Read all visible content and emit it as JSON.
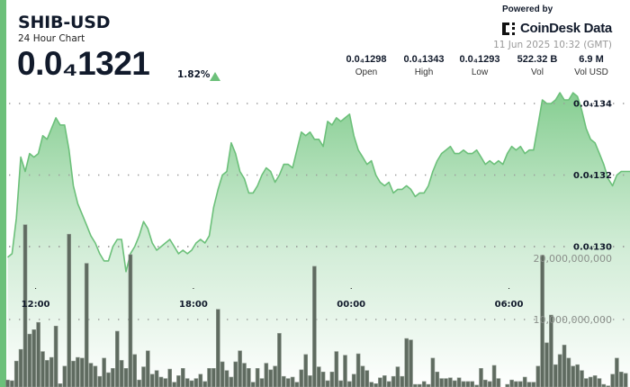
{
  "header": {
    "title": "SHIB-USD",
    "subtitle": "24 Hour Chart",
    "price": "0.0₄1321",
    "change": "1.82%",
    "change_direction": "up",
    "powered_by": "Powered by",
    "brand": "CoinDesk Data",
    "timestamp": "11 Jun 2025 10:32 (GMT)"
  },
  "stats": [
    {
      "value": "0.0₄1298",
      "label": "Open"
    },
    {
      "value": "0.0₄1343",
      "label": "High"
    },
    {
      "value": "0.0₄1293",
      "label": "Low"
    },
    {
      "value": "522.32 B",
      "label": "Vol"
    },
    {
      "value": "6.9 M",
      "label": "Vol USD"
    }
  ],
  "colors": {
    "accent": "#6cc07a",
    "line": "#6cc07a",
    "bars": "#5f6b60",
    "text": "#111a2b"
  },
  "chart_data": {
    "type": "line+bar",
    "grid": true,
    "price_axis": {
      "ticks": [
        1.3e-05,
        1.32e-05,
        1.34e-05
      ],
      "tick_labels": [
        "0.0₄130",
        "0.0₄132",
        "0.0₄134"
      ],
      "range": [
        1.3e-05,
        1.34e-05
      ]
    },
    "volume_axis": {
      "ticks": [
        10000000000,
        20000000000
      ],
      "tick_labels": [
        "10,000,000,000",
        "20,000,000,000"
      ]
    },
    "x_tick_labels": [
      "12:00",
      "18:00",
      "00:00",
      "06:00"
    ],
    "times": [
      "10:50",
      "11:00",
      "11:10",
      "11:20",
      "11:30",
      "11:40",
      "11:50",
      "12:00",
      "12:10",
      "12:20",
      "12:30",
      "12:40",
      "12:50",
      "13:00",
      "13:10",
      "13:20",
      "13:30",
      "13:40",
      "13:50",
      "14:00",
      "14:10",
      "14:20",
      "14:30",
      "14:40",
      "14:50",
      "15:00",
      "15:10",
      "15:20",
      "15:30",
      "15:40",
      "15:50",
      "16:00",
      "16:10",
      "16:20",
      "16:30",
      "16:40",
      "16:50",
      "17:00",
      "17:10",
      "17:20",
      "17:30",
      "17:40",
      "17:50",
      "18:00",
      "18:10",
      "18:20",
      "18:30",
      "18:40",
      "18:50",
      "19:00",
      "19:10",
      "19:20",
      "19:30",
      "19:40",
      "19:50",
      "20:00",
      "20:10",
      "20:20",
      "20:30",
      "20:40",
      "20:50",
      "21:00",
      "21:10",
      "21:20",
      "21:30",
      "21:40",
      "21:50",
      "22:00",
      "22:10",
      "22:20",
      "22:30",
      "22:40",
      "22:50",
      "23:00",
      "23:10",
      "23:20",
      "23:30",
      "23:40",
      "23:50",
      "00:00",
      "00:10",
      "00:20",
      "00:30",
      "00:40",
      "00:50",
      "01:00",
      "01:10",
      "01:20",
      "01:30",
      "01:40",
      "01:50",
      "02:00",
      "02:10",
      "02:20",
      "02:30",
      "02:40",
      "02:50",
      "03:00",
      "03:10",
      "03:20",
      "03:30",
      "03:40",
      "03:50",
      "04:00",
      "04:10",
      "04:20",
      "04:30",
      "04:40",
      "04:50",
      "05:00",
      "05:10",
      "05:20",
      "05:30",
      "05:40",
      "05:50",
      "06:00",
      "06:10",
      "06:20",
      "06:30",
      "06:40",
      "06:50",
      "07:00",
      "07:10",
      "07:20",
      "07:30",
      "07:40",
      "07:50",
      "08:00",
      "08:10",
      "08:20",
      "08:30",
      "08:40",
      "08:50",
      "09:00",
      "09:10",
      "09:20",
      "09:30",
      "09:40",
      "09:50",
      "10:00",
      "10:10",
      "10:20"
    ],
    "price": [
      1.297e-05,
      1.298e-05,
      1.308e-05,
      1.325e-05,
      1.321e-05,
      1.326e-05,
      1.325e-05,
      1.326e-05,
      1.331e-05,
      1.33e-05,
      1.333e-05,
      1.336e-05,
      1.334e-05,
      1.334e-05,
      1.327e-05,
      1.317e-05,
      1.312e-05,
      1.309e-05,
      1.306e-05,
      1.303e-05,
      1.301e-05,
      1.298e-05,
      1.296e-05,
      1.296e-05,
      1.3e-05,
      1.302e-05,
      1.302e-05,
      1.293e-05,
      1.298e-05,
      1.3e-05,
      1.303e-05,
      1.307e-05,
      1.305e-05,
      1.301e-05,
      1.299e-05,
      1.3e-05,
      1.301e-05,
      1.302e-05,
      1.3e-05,
      1.298e-05,
      1.299e-05,
      1.298e-05,
      1.299e-05,
      1.301e-05,
      1.302e-05,
      1.301e-05,
      1.303e-05,
      1.311e-05,
      1.316e-05,
      1.32e-05,
      1.321e-05,
      1.329e-05,
      1.326e-05,
      1.321e-05,
      1.319e-05,
      1.315e-05,
      1.315e-05,
      1.317e-05,
      1.32e-05,
      1.322e-05,
      1.321e-05,
      1.318e-05,
      1.32e-05,
      1.323e-05,
      1.323e-05,
      1.322e-05,
      1.327e-05,
      1.332e-05,
      1.331e-05,
      1.332e-05,
      1.33e-05,
      1.33e-05,
      1.328e-05,
      1.335e-05,
      1.334e-05,
      1.336e-05,
      1.335e-05,
      1.336e-05,
      1.337e-05,
      1.331e-05,
      1.327e-05,
      1.325e-05,
      1.323e-05,
      1.324e-05,
      1.32e-05,
      1.318e-05,
      1.317e-05,
      1.318e-05,
      1.315e-05,
      1.316e-05,
      1.316e-05,
      1.317e-05,
      1.316e-05,
      1.314e-05,
      1.315e-05,
      1.315e-05,
      1.317e-05,
      1.321e-05,
      1.324e-05,
      1.326e-05,
      1.327e-05,
      1.328e-05,
      1.326e-05,
      1.326e-05,
      1.327e-05,
      1.326e-05,
      1.326e-05,
      1.327e-05,
      1.325e-05,
      1.323e-05,
      1.324e-05,
      1.323e-05,
      1.324e-05,
      1.323e-05,
      1.326e-05,
      1.328e-05,
      1.327e-05,
      1.328e-05,
      1.326e-05,
      1.327e-05,
      1.327e-05,
      1.334e-05,
      1.341e-05,
      1.34e-05,
      1.34e-05,
      1.341e-05,
      1.343e-05,
      1.341e-05,
      1.341e-05,
      1.343e-05,
      1.342e-05,
      1.338e-05,
      1.333e-05,
      1.33e-05,
      1.329e-05,
      1.326e-05,
      1.323e-05,
      1.319e-05,
      1.317e-05,
      1.32e-05,
      1.321e-05,
      1.321e-05
    ],
    "volume": [
      1700000000.0,
      1600000000.0,
      4300000000.0,
      5900000000.0,
      23000000000.0,
      8000000000.0,
      8600000000.0,
      9600000000.0,
      5600000000.0,
      4400000000.0,
      4800000000.0,
      9100000000.0,
      1200000000.0,
      3600000000.0,
      21700000000.0,
      4300000000.0,
      4800000000.0,
      4700000000.0,
      17700000000.0,
      4000000000.0,
      3600000000.0,
      2200000000.0,
      4700000000.0,
      2700000000.0,
      3300000000.0,
      8400000000.0,
      4400000000.0,
      3300000000.0,
      18900000000.0,
      5200000000.0,
      1700000000.0,
      3500000000.0,
      5700000000.0,
      2500000000.0,
      3000000000.0,
      2100000000.0,
      1900000000.0,
      3200000000.0,
      1400000000.0,
      2300000000.0,
      3300000000.0,
      1900000000.0,
      1600000000.0,
      1900000000.0,
      2500000000.0,
      1500000000.0,
      3300000000.0,
      3300000000.0,
      11400000000.0,
      4200000000.0,
      3000000000.0,
      2100000000.0,
      4200000000.0,
      5700000000.0,
      4000000000.0,
      3300000000.0,
      1400000000.0,
      3300000000.0,
      1900000000.0,
      4000000000.0,
      3100000000.0,
      3600000000.0,
      8100000000.0,
      2200000000.0,
      1900000000.0,
      2100000000.0,
      1400000000.0,
      3100000000.0,
      5200000000.0,
      2300000000.0,
      17300000000.0,
      3500000000.0,
      2800000000.0,
      1600000000.0,
      2800000000.0,
      5600000000.0,
      1600000000.0,
      5100000000.0,
      1500000000.0,
      2500000000.0,
      5300000000.0,
      3600000000.0,
      3000000000.0,
      1400000000.0,
      1200000000.0,
      2000000000.0,
      2300000000.0,
      1500000000.0,
      2200000000.0,
      3500000000.0,
      2200000000.0,
      7400000000.0,
      7200000000.0,
      1100000000.0,
      1100000000.0,
      1500000000.0,
      1100000000.0,
      4700000000.0,
      2800000000.0,
      1900000000.0,
      1900000000.0,
      2000000000.0,
      1600000000.0,
      2000000000.0,
      1500000000.0,
      1500000000.0,
      1500000000.0,
      1000000000.0,
      3300000000.0,
      1700000000.0,
      1500000000.0,
      3700000000.0,
      1900000000.0,
      700000000.0,
      1100000000.0,
      1700000000.0,
      1500000000.0,
      1500000000.0,
      2100000000.0,
      1400000000.0,
      1400000000.0,
      3600000000.0,
      18800000000.0,
      6800000000.0,
      10600000000.0,
      3800000000.0,
      5200000000.0,
      6500000000.0,
      4700000000.0,
      3600000000.0,
      3800000000.0,
      3000000000.0,
      1900000000.0,
      2100000000.0,
      2300000000.0,
      1900000000.0,
      1100000000.0,
      900000000.0,
      2500000000.0,
      4700000000.0,
      2800000000.0,
      2600000000.0
    ]
  }
}
